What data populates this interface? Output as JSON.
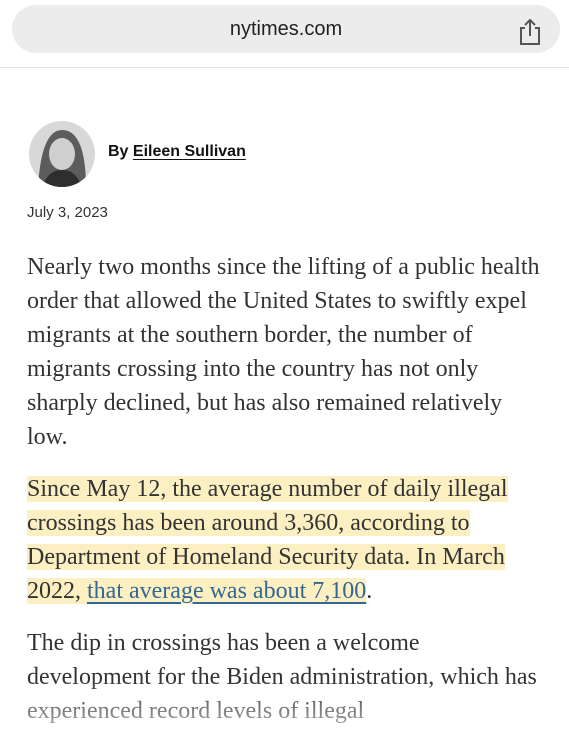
{
  "browser": {
    "url": "nytimes.com"
  },
  "byline": {
    "prefix": "By",
    "author": "Eileen Sullivan",
    "date": "July 3, 2023"
  },
  "article": {
    "paragraphs": [
      {
        "text": "Nearly two months since the lifting of a public health order that allowed the United States to swiftly expel migrants at the southern border, the number of migrants crossing into the country has not only sharply declined, but has also remained relatively low."
      },
      {
        "text": "Since May 12, the average number of daily illegal crossings has been around 3,360, according to Department of Homeland Security data. In March 2022, ",
        "link": "that average was about 7,100",
        "end": "."
      },
      {
        "text": "The dip in crossings has been a welcome development for the Biden administration, which has experienced record levels of illegal"
      }
    ]
  }
}
